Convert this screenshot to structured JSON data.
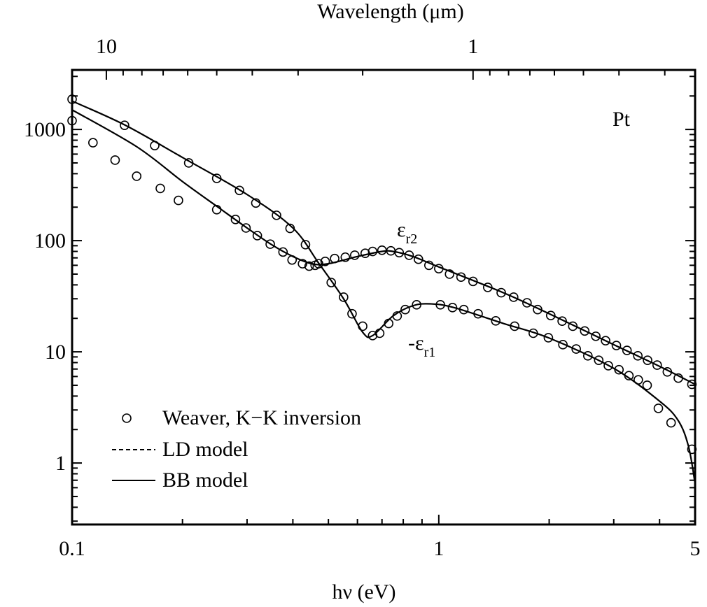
{
  "chart_data": {
    "type": "scatter",
    "title": "",
    "xlabel": "hν (eV)",
    "ylabel": "",
    "top_xlabel": "Wavelength (μm)",
    "xscale": "log",
    "yscale": "log",
    "xlim": [
      0.1,
      5
    ],
    "ylim": [
      0.28,
      3430
    ],
    "x_ticks": [
      {
        "value": 0.1,
        "label": "0.1"
      },
      {
        "value": 1,
        "label": "1"
      },
      {
        "value": 5,
        "label": "5"
      }
    ],
    "y_ticks": [
      {
        "value": 1,
        "label": "1"
      },
      {
        "value": 10,
        "label": "10"
      },
      {
        "value": 100,
        "label": "100"
      },
      {
        "value": 1000,
        "label": "1000"
      }
    ],
    "top_ticks": [
      {
        "value": 10,
        "label": "10"
      },
      {
        "value": 1,
        "label": "1"
      }
    ],
    "annotations": {
      "metal": "Pt",
      "eps2": "ε",
      "eps2_sub": "r2",
      "eps1": "-ε",
      "eps1_sub": "r1"
    },
    "legend": {
      "placement": "bottom-left",
      "entries": [
        {
          "label": "Weaver,  K−K inversion",
          "style": "circle"
        },
        {
          "label": "LD model",
          "style": "dashed"
        },
        {
          "label": "BB model",
          "style": "solid"
        }
      ]
    },
    "series": [
      {
        "name": "-εr1 (Weaver, K-K inversion)",
        "kind": "points",
        "x": [
          0.1,
          0.139,
          0.168,
          0.208,
          0.248,
          0.286,
          0.317,
          0.361,
          0.393,
          0.433,
          0.47,
          0.509,
          0.55,
          0.58,
          0.62,
          0.66,
          0.69,
          0.73,
          0.77,
          0.81,
          0.87,
          1.01,
          1.09,
          1.17,
          1.28,
          1.43,
          1.61,
          1.81,
          1.99,
          2.18,
          2.37,
          2.55,
          2.73,
          2.9,
          3.1,
          3.3,
          3.5,
          3.7,
          3.97,
          4.3,
          4.9
        ],
        "y": [
          1870,
          1090,
          716,
          500,
          363,
          283,
          218,
          169,
          129,
          92,
          62,
          42,
          31,
          22,
          17,
          14,
          14.7,
          18,
          21,
          24,
          26.5,
          26.5,
          25,
          24,
          22,
          19,
          17,
          14.7,
          13.4,
          11.6,
          10.6,
          9.2,
          8.4,
          7.5,
          6.9,
          6.1,
          5.6,
          5.0,
          3.1,
          2.3,
          1.33
        ]
      },
      {
        "name": "εr2 (Weaver, K-K inversion)",
        "kind": "points",
        "x": [
          0.1,
          0.114,
          0.131,
          0.15,
          0.174,
          0.195,
          0.248,
          0.279,
          0.298,
          0.32,
          0.347,
          0.376,
          0.398,
          0.425,
          0.443,
          0.46,
          0.49,
          0.52,
          0.556,
          0.59,
          0.63,
          0.66,
          0.7,
          0.74,
          0.78,
          0.83,
          0.88,
          0.94,
          1.0,
          1.07,
          1.15,
          1.24,
          1.36,
          1.48,
          1.6,
          1.74,
          1.86,
          2.02,
          2.17,
          2.32,
          2.5,
          2.68,
          2.85,
          3.05,
          3.26,
          3.49,
          3.71,
          3.94,
          4.2,
          4.5,
          4.9
        ],
        "y": [
          1200,
          760,
          530,
          380,
          295,
          230,
          190,
          155,
          130,
          111,
          93,
          79,
          67,
          62,
          59,
          60,
          65,
          69,
          71,
          74,
          77,
          80,
          82,
          81,
          78,
          74,
          68,
          60,
          56,
          50,
          47,
          43,
          38,
          34,
          31,
          27.6,
          24,
          21.2,
          18.9,
          17,
          15.4,
          13.8,
          12.6,
          11.4,
          10.3,
          9.2,
          8.4,
          7.6,
          6.6,
          5.8,
          5.1
        ]
      },
      {
        "name": "-εr1 BB model",
        "kind": "solid",
        "x": [
          0.1,
          0.139,
          0.2,
          0.3,
          0.4,
          0.47,
          0.55,
          0.62,
          0.66,
          0.75,
          0.85,
          0.95,
          1.1,
          1.5,
          2,
          3,
          4,
          4.5,
          4.8,
          5
        ],
        "y": [
          1800,
          1100,
          560,
          260,
          130,
          63,
          30,
          15,
          14,
          21,
          26,
          27,
          25,
          18,
          13.3,
          7.1,
          3.6,
          2.4,
          1.4,
          0.65
        ]
      },
      {
        "name": "εr2 BB model",
        "kind": "solid",
        "x": [
          0.1,
          0.15,
          0.2,
          0.25,
          0.3,
          0.35,
          0.4,
          0.45,
          0.5,
          0.6,
          0.7,
          0.75,
          0.85,
          1,
          1.5,
          2,
          3,
          4,
          5
        ],
        "y": [
          1500,
          700,
          340,
          200,
          130,
          92,
          72,
          62,
          62,
          72,
          80,
          80,
          72,
          58,
          34,
          22,
          11.6,
          7.4,
          5.1
        ]
      }
    ]
  }
}
